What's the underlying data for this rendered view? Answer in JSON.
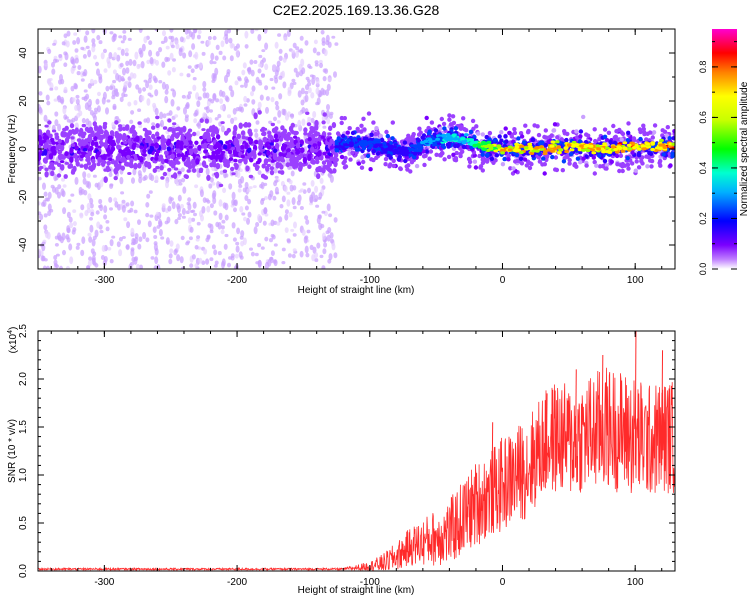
{
  "title": "C2E2.2025.169.13.36.G28",
  "chart_data": [
    {
      "type": "heatmap",
      "title": "C2E2.2025.169.13.36.G28",
      "xlabel": "Height of straight line (km)",
      "ylabel": "Frequency (Hz)",
      "xlim": [
        -350,
        130
      ],
      "ylim": [
        -50,
        50
      ],
      "xticks": [
        -300,
        -200,
        -100,
        0,
        100
      ],
      "yticks": [
        -40,
        -20,
        0,
        20,
        40
      ],
      "colorbar": {
        "label": "Normalized spectral amplitude",
        "range": [
          0.0,
          0.95
        ],
        "ticks": [
          "0.0",
          "0.2",
          "0.4",
          "0.6",
          "0.8"
        ],
        "colormap": [
          "#ffffff",
          "#7a00ff",
          "#0000ff",
          "#00e5ff",
          "#00ff00",
          "#ffff00",
          "#ff9900",
          "#ff0000",
          "#ff00cc"
        ]
      },
      "ridge": {
        "description_points_height_km": [
          -125,
          -110,
          -95,
          -80,
          -70,
          -60,
          -50,
          -40,
          -30,
          -20,
          -10,
          0,
          20,
          40,
          60,
          80,
          100,
          120
        ],
        "center_freq_hz": [
          1,
          3,
          2,
          -1,
          -1,
          2,
          4,
          5,
          4,
          2,
          1,
          0,
          0,
          1,
          1,
          0,
          1,
          1
        ],
        "peak_amplitude": [
          0.35,
          0.4,
          0.4,
          0.35,
          0.35,
          0.45,
          0.5,
          0.55,
          0.55,
          0.65,
          0.75,
          0.85,
          0.9,
          0.85,
          0.85,
          0.9,
          0.9,
          0.9
        ]
      },
      "noise_region_km": [
        -350,
        -125
      ]
    },
    {
      "type": "line",
      "xlabel": "Height of straight line (km)",
      "ylabel": "SNR (10 * v/v)",
      "yscale_label": "(x10",
      "yscale_exp": "4",
      "yscale_close": ")",
      "xlim": [
        -350,
        130
      ],
      "ylim": [
        0,
        2.5
      ],
      "xticks": [
        -300,
        -200,
        -100,
        0,
        100
      ],
      "yticks": [
        "0.0",
        "0.5",
        "1.0",
        "1.5",
        "2.0",
        "2.5"
      ],
      "series_color": "#ff2a2a",
      "envelope": {
        "x": [
          -350,
          -120,
          -100,
          -90,
          -80,
          -70,
          -60,
          -50,
          -40,
          -30,
          -20,
          -10,
          0,
          10,
          20,
          30,
          40,
          50,
          60,
          70,
          80,
          90,
          100,
          110,
          120,
          130
        ],
        "mean": [
          0.02,
          0.02,
          0.05,
          0.08,
          0.15,
          0.25,
          0.3,
          0.35,
          0.4,
          0.55,
          0.7,
          0.8,
          0.9,
          1.0,
          1.1,
          1.3,
          1.4,
          1.35,
          1.4,
          1.45,
          1.5,
          1.45,
          1.4,
          1.35,
          1.4,
          1.4
        ],
        "spread": [
          0.01,
          0.01,
          0.05,
          0.1,
          0.15,
          0.2,
          0.25,
          0.3,
          0.35,
          0.4,
          0.45,
          0.45,
          0.5,
          0.5,
          0.55,
          0.55,
          0.6,
          0.6,
          0.6,
          0.65,
          0.65,
          0.65,
          0.65,
          0.6,
          0.6,
          0.6
        ]
      },
      "peaks": [
        {
          "x": -8,
          "y": 1.55
        },
        {
          "x": 33,
          "y": 1.85
        },
        {
          "x": 55,
          "y": 2.1
        },
        {
          "x": 75,
          "y": 2.25
        },
        {
          "x": 100,
          "y": 2.55
        },
        {
          "x": 120,
          "y": 2.3
        }
      ]
    }
  ]
}
